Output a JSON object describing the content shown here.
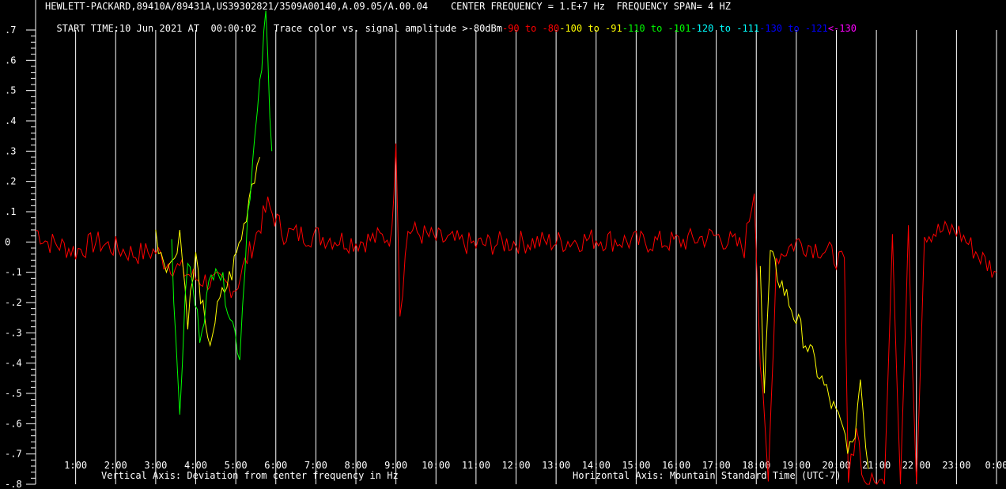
{
  "header": {
    "line1": "HEWLETT-PACKARD,89410A/89431A,US39302821/3509A00140,A.09.05/A.00.04    CENTER FREQUENCY = 1.E+7 Hz  FREQUENCY SPAN= 4 HZ",
    "line2_prefix": "START TIME:10 Jun 2021 AT  00:00:02   Trace color vs. signal amplitude >-80dBm",
    "legend": [
      {
        "text": "-90 to -80",
        "color": "#ff0000"
      },
      {
        "text": "-100 to -91",
        "color": "#ffff00"
      },
      {
        "text": "-110 to -101",
        "color": "#00ff00"
      },
      {
        "text": "-120 to -111",
        "color": "#00ffff"
      },
      {
        "text": "-130 to -121",
        "color": "#0000ff"
      },
      {
        "text": "<-130",
        "color": "#ff00ff"
      }
    ]
  },
  "footer": {
    "vertical_axis": "Vertical Axis: Deviation from center frequency in Hz",
    "horizontal_axis": "Horizontal Axis: Mountain Standard Time (UTC-7)"
  },
  "chart_data": {
    "type": "line",
    "xlabel": "Horizontal Axis: Mountain Standard Time (UTC-7)",
    "ylabel": "Vertical Axis: Deviation from center frequency in Hz",
    "xlim": [
      0,
      24
    ],
    "ylim": [
      -0.8,
      0.7
    ],
    "y_ticks": [
      ".7",
      ".6",
      ".5",
      ".4",
      ".3",
      ".2",
      ".1",
      "0",
      "-.1",
      "-.2",
      "-.3",
      "-.4",
      "-.5",
      "-.6",
      "-.7",
      "-.8"
    ],
    "x_ticks": [
      "1:00",
      "2:00",
      "3:00",
      "4:00",
      "5:00",
      "6:00",
      "7:00",
      "8:00",
      "9:00",
      "10:00",
      "11:00",
      "12:00",
      "13:00",
      "14:00",
      "15:00",
      "16:00",
      "17:00",
      "18:00",
      "19:00",
      "20:00",
      "21:00",
      "22:00",
      "23:00",
      "0:00"
    ],
    "grid": "vertical",
    "series": [
      {
        "color": "#ff0000",
        "points": [
          [
            0,
            0.04
          ],
          [
            0.3,
            0.0
          ],
          [
            0.6,
            -0.01
          ],
          [
            1.0,
            -0.03
          ],
          [
            1.5,
            0.0
          ],
          [
            2.0,
            -0.02
          ],
          [
            2.5,
            -0.04
          ],
          [
            3.0,
            -0.03
          ],
          [
            3.2,
            -0.06
          ],
          [
            4.0,
            -0.12
          ],
          [
            5.0,
            -0.15
          ],
          [
            5.8,
            0.12
          ],
          [
            6.2,
            0.03
          ],
          [
            7.0,
            0.02
          ],
          [
            8.0,
            0.0
          ],
          [
            8.9,
            0.02
          ],
          [
            9.0,
            0.36
          ],
          [
            9.1,
            -0.23
          ],
          [
            9.3,
            0.04
          ],
          [
            10.0,
            0.01
          ],
          [
            11.0,
            -0.01
          ],
          [
            12.0,
            0.0
          ],
          [
            13.0,
            0.0
          ],
          [
            14.0,
            0.01
          ],
          [
            15.0,
            0.0
          ],
          [
            16.0,
            0.0
          ],
          [
            17.0,
            0.02
          ],
          [
            17.7,
            -0.02
          ],
          [
            17.95,
            0.18
          ],
          [
            18.1,
            -0.4
          ],
          [
            18.3,
            -0.8
          ],
          [
            18.5,
            -0.05
          ],
          [
            19.0,
            0.0
          ],
          [
            19.6,
            -0.02
          ],
          [
            20.0,
            -0.05
          ],
          [
            20.2,
            -0.08
          ],
          [
            20.3,
            -0.8
          ],
          [
            20.5,
            -0.6
          ],
          [
            20.7,
            -0.8
          ],
          [
            21.2,
            -0.8
          ],
          [
            21.4,
            0.04
          ],
          [
            21.6,
            -0.8
          ],
          [
            21.8,
            0.02
          ],
          [
            22.0,
            -0.8
          ],
          [
            22.2,
            0.03
          ],
          [
            23.0,
            0.04
          ],
          [
            23.6,
            -0.05
          ],
          [
            24.0,
            -0.1
          ]
        ]
      },
      {
        "color": "#ffff00",
        "points": [
          [
            3.0,
            0.02
          ],
          [
            3.2,
            -0.05
          ],
          [
            3.4,
            -0.08
          ],
          [
            3.6,
            0.04
          ],
          [
            3.8,
            -0.25
          ],
          [
            4.0,
            -0.05
          ],
          [
            4.3,
            -0.35
          ],
          [
            4.6,
            -0.2
          ],
          [
            4.9,
            -0.1
          ],
          [
            5.2,
            0.05
          ],
          [
            5.4,
            0.2
          ],
          [
            5.6,
            0.28
          ]
        ]
      },
      {
        "color": "#00ff00",
        "points": [
          [
            3.4,
            0.03
          ],
          [
            3.5,
            -0.35
          ],
          [
            3.6,
            -0.55
          ],
          [
            3.8,
            -0.05
          ],
          [
            4.1,
            -0.3
          ],
          [
            4.5,
            -0.05
          ],
          [
            4.8,
            -0.2
          ],
          [
            5.1,
            -0.37
          ],
          [
            5.3,
            0.1
          ],
          [
            5.6,
            0.5
          ],
          [
            5.75,
            0.75
          ],
          [
            5.9,
            0.3
          ]
        ]
      },
      {
        "color": "#ffff00",
        "points": [
          [
            18.1,
            -0.05
          ],
          [
            18.2,
            -0.5
          ],
          [
            18.35,
            -0.05
          ],
          [
            20.4,
            -0.7
          ],
          [
            20.6,
            -0.45
          ],
          [
            20.8,
            -0.75
          ]
        ]
      }
    ]
  }
}
